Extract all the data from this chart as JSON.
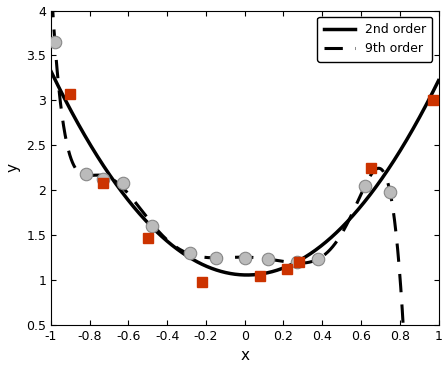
{
  "title": "",
  "xlabel": "x",
  "ylabel": "y",
  "xlim": [
    -1.0,
    1.0
  ],
  "ylim": [
    0.5,
    4.0
  ],
  "yticks": [
    0.5,
    1.0,
    1.5,
    2.0,
    2.5,
    3.0,
    3.5,
    4.0
  ],
  "xticks": [
    -1.0,
    -0.8,
    -0.6,
    -0.4,
    -0.2,
    0.0,
    0.2,
    0.4,
    0.6,
    0.8,
    1.0
  ],
  "train_x": [
    -0.98,
    -0.82,
    -0.73,
    -0.63,
    -0.48,
    -0.28,
    -0.15,
    0.0,
    0.12,
    0.27,
    0.38,
    0.62,
    0.75
  ],
  "train_y": [
    3.65,
    2.18,
    2.12,
    2.08,
    1.6,
    1.3,
    1.25,
    1.25,
    1.23,
    1.2,
    1.23,
    2.05,
    1.98
  ],
  "val_x": [
    -0.9,
    -0.73,
    -0.5,
    -0.22,
    0.08,
    0.22,
    0.28,
    0.65,
    0.97
  ],
  "val_y": [
    3.07,
    2.08,
    1.47,
    0.98,
    1.05,
    1.12,
    1.2,
    2.25,
    3.0
  ],
  "line2_color": "#000000",
  "line9_color": "#000000",
  "train_color": "#bbbbbb",
  "train_edge_color": "#888888",
  "val_color": "#cc3300",
  "legend_2nd": "2nd order",
  "legend_9th": "9th order",
  "figsize": [
    4.48,
    3.69
  ],
  "dpi": 100
}
